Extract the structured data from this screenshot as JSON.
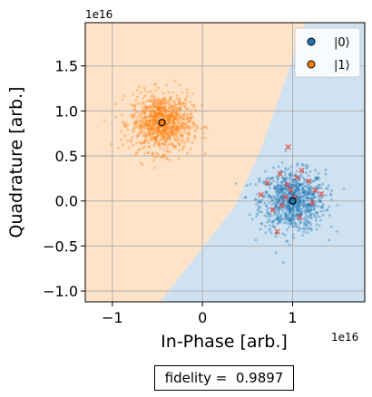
{
  "chart_data": {
    "type": "scatter",
    "xlabel": "In-Phase [arb.]",
    "ylabel": "Quadrature [arb.]",
    "x_exponent_label": "1e16",
    "y_exponent_label": "1e16",
    "xlim": [
      -1.3,
      1.8
    ],
    "ylim": [
      -1.12,
      1.98
    ],
    "x_ticks": [
      -1,
      0,
      1
    ],
    "x_tick_labels": [
      "−1",
      "0",
      "1"
    ],
    "y_ticks": [
      -1.0,
      -0.5,
      0.0,
      0.5,
      1.0,
      1.5
    ],
    "y_tick_labels": [
      "−1.0",
      "−0.5",
      "0.0",
      "0.5",
      "1.0",
      "1.5"
    ],
    "grid": true,
    "legend_placement": "top-right",
    "decision_regions": {
      "boundary_points": [
        [
          -0.45,
          -1.12
        ],
        [
          0.35,
          -0.1
        ],
        [
          0.65,
          0.55
        ],
        [
          1.15,
          1.98
        ]
      ],
      "state0_region_color": "#cfe2f1",
      "state1_region_color": "#ffe3c8"
    },
    "series": [
      {
        "name": "|0⟩",
        "color": "#1f77b4",
        "center": [
          1.0,
          0.0
        ],
        "spread": [
          0.18,
          0.17
        ],
        "count": 900,
        "misassigned_points": [
          [
            0.95,
            0.6
          ],
          [
            1.32,
            0.08
          ],
          [
            0.65,
            0.07
          ],
          [
            1.1,
            0.34
          ],
          [
            0.83,
            -0.34
          ],
          [
            0.94,
            0.18
          ],
          [
            1.22,
            -0.02
          ],
          [
            0.88,
            -0.05
          ],
          [
            1.05,
            0.26
          ],
          [
            0.72,
            0.2
          ],
          [
            1.18,
            0.22
          ],
          [
            0.98,
            0.12
          ],
          [
            1.25,
            0.12
          ],
          [
            0.92,
            0.04
          ],
          [
            0.78,
            -0.1
          ],
          [
            1.08,
            -0.18
          ],
          [
            0.86,
            0.3
          ],
          [
            1.02,
            0.04
          ]
        ]
      },
      {
        "name": "|1⟩",
        "color": "#ff7f0e",
        "center": [
          -0.45,
          0.87
        ],
        "spread": [
          0.17,
          0.16
        ],
        "count": 900,
        "misassigned_points": []
      }
    ]
  },
  "fidelity": {
    "label": "fidelity =",
    "value": "0.9897"
  }
}
